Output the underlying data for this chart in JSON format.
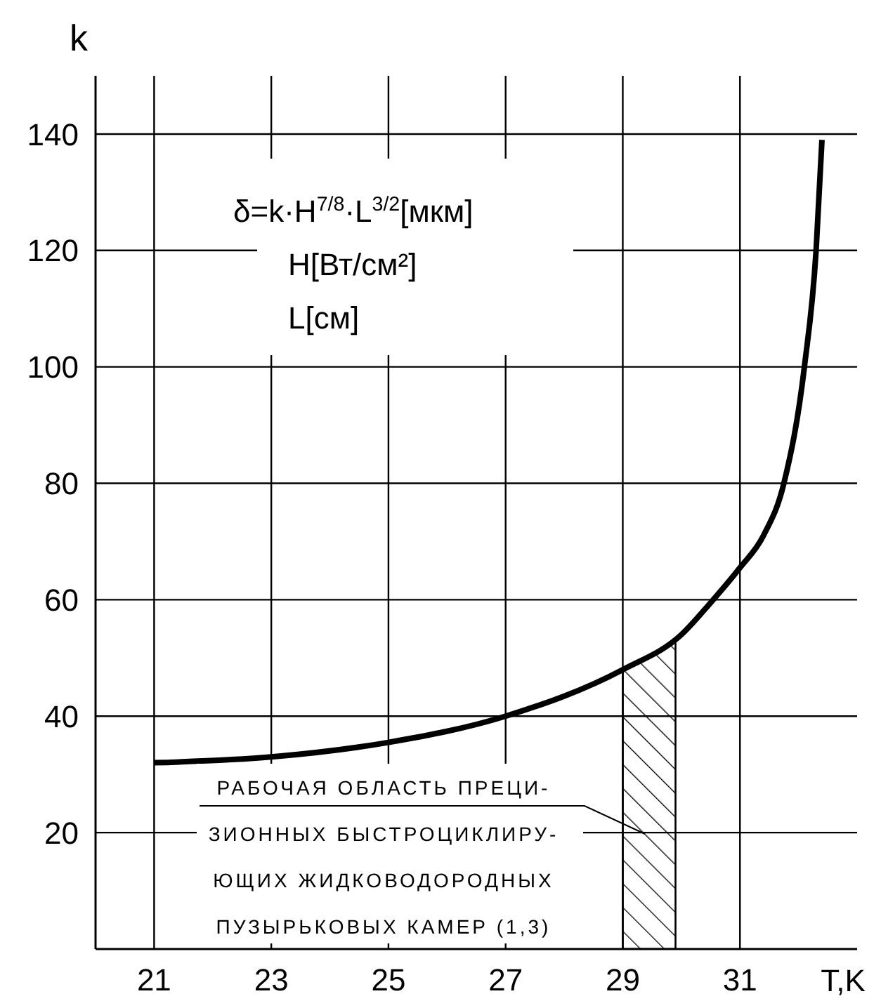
{
  "chart_data": {
    "type": "line",
    "ylabel": "k",
    "xlabel": "T,K",
    "x": [
      21,
      23,
      25,
      27,
      29,
      30,
      30.5,
      31,
      31.4,
      31.75,
      32.1,
      32.3,
      32.4
    ],
    "series": [
      {
        "color": "#000000",
        "values": [
          32,
          33,
          35.5,
          40,
          48,
          54,
          59.5,
          65.5,
          71,
          80,
          100,
          120,
          139
        ]
      }
    ],
    "xlim": [
      20,
      33
    ],
    "xticks": [
      21,
      23,
      25,
      27,
      29,
      31
    ],
    "ylim": [
      0,
      150
    ],
    "yticks": [
      20,
      40,
      60,
      80,
      100,
      120,
      140
    ],
    "grid": true,
    "marker": "none",
    "line_style": "solid",
    "bands": [
      {
        "axis": "x",
        "from": 29,
        "to": 29.9,
        "label": "РАБОЧАЯ ОБЛАСТЬ ПРЕЦИ-\nЗИОННЫХ БЫСТРОЦИКЛИРУ-\nЮЩИХ ЖИДКОВОДОРОДНЫХ\nПУЗЫРЬКОВЫХ КАМЕР (1,3)"
      }
    ],
    "annotations": [
      "δ=k·H$^{7/8}$·L$^{3/2}$[мкм]",
      "H[Вт/см²]",
      "L[см]"
    ]
  }
}
